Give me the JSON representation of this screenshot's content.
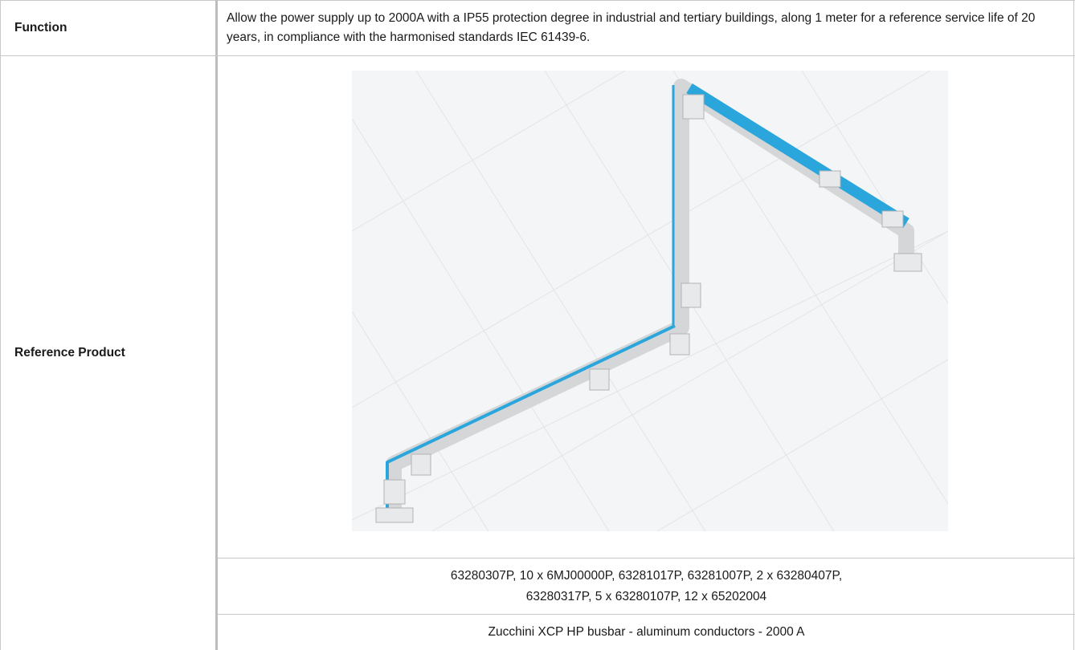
{
  "table": {
    "rows": [
      {
        "label": "Function",
        "text": "Allow the power supply up to 2000A with a IP55 protection degree in industrial and tertiary buildings, along 1 meter for a reference service life of 20 years, in compliance with the harmonised standards IEC 61439-6."
      },
      {
        "label": "Reference Product",
        "codes": [
          "63280307P, 10 x 6MJ00000P, 63281017P, 63281007P, 2 x 63280407P,",
          "63280317P, 5 x 63280107P, 12 x 65202004"
        ],
        "description": "Zucchini XCP HP busbar - aluminum conductors - 2000 A"
      }
    ]
  }
}
